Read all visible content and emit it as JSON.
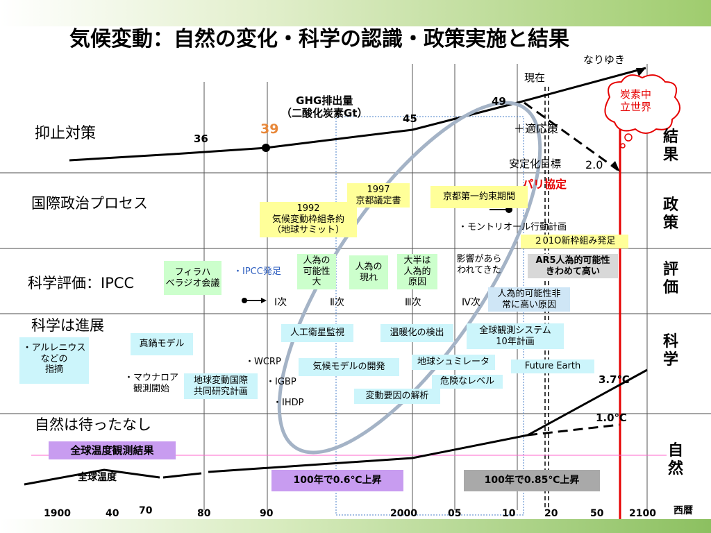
{
  "title": "気候変動：自然の変化・科学の認識・政策実施と結果",
  "rows": {
    "control": "抑止対策",
    "politics": "国際政治プロセス",
    "science_eval": "科学評価：IPCC",
    "science_progress": "科学は進展",
    "nature": "自然は待ったなし"
  },
  "side_labels": {
    "result": "結\n果",
    "policy": "政\n策",
    "eval": "評\n価",
    "science": "科\n学",
    "nature": "自\n然"
  },
  "ghg": {
    "label": "GHG排出量\n（二酸化炭素Gt）",
    "v36": "36",
    "v39": "39",
    "v45": "45",
    "v49": "49",
    "naruyuki": "なりゆき",
    "genzai": "現在",
    "adaptation": "＋適応策",
    "stabilization": "安定化目標",
    "two_deg": "2.0",
    "carbon_neutral": "炭素中\n立世界",
    "paris": "パリ協定"
  },
  "politics": {
    "unfccc": "1992\n気候変動枠組条約\n（地球サミット）",
    "kyoto": "1997\n京都議定書",
    "kyoto_period": "京都第一約束期間",
    "montreal": "・モントリオール行動計画",
    "framework2010": "２01O新枠組み発足"
  },
  "ipcc": {
    "villach": "フィラハ\nベラジオ会議",
    "founded": "・IPCC発足",
    "ar1": "Ⅰ次",
    "ar2": "Ⅱ次",
    "ar3": "Ⅲ次",
    "ar4": "Ⅳ次",
    "possible": "人為の\n可能性\n大",
    "evident": "人為の\n現れ",
    "mostly": "大半は\n人為的\n原因",
    "impacts": "影響があら\nわれてきた",
    "ar5": "AR5人為的可能性\nきわめて高い",
    "very_high": "人為的可能性非\n常に高い原因"
  },
  "science": {
    "arrhenius": "・アルレニウス\nなどの\n指摘",
    "manabe": "真鍋モデル",
    "mauna_loa": "・マウナロア\n観測開始",
    "igbp_joint": "地球変動国際\n共同研究計画",
    "wcrp": "・WCRP",
    "igbp": "・IGBP",
    "ihdp": "・IHDP",
    "satellite": "人工衛星監視",
    "model_dev": "気候モデルの開発",
    "warming_detect": "温暖化の検出",
    "earth_sim": "地球シュミレータ",
    "factor_analysis": "変動要因の解析",
    "danger": "危険なレベル",
    "gos": "全球観測システム\n10年計画",
    "future_earth": "Future Earth"
  },
  "nature": {
    "global_obs": "全球温度観測結果",
    "global_temp": "全球温度",
    "rise_06": "100年で0.6℃上昇",
    "rise_085": "100年で0.85℃上昇",
    "t37": "3.7℃",
    "t10": "1.0℃"
  },
  "axis": {
    "ticks": [
      "1900",
      "40",
      "70",
      "80",
      "90",
      "2000",
      "05",
      "10",
      "20",
      "50",
      "2100"
    ],
    "unit": "西暦"
  }
}
